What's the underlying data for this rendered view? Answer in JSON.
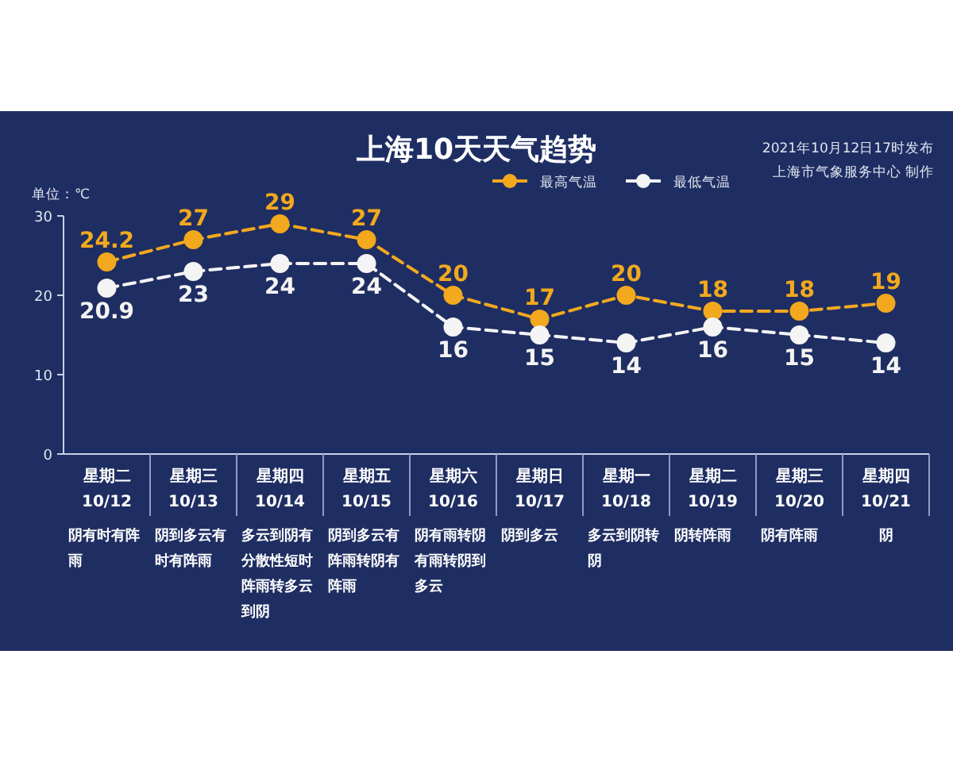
{
  "chart_data": {
    "type": "line",
    "title": "上海10天天气趋势",
    "ylabel": "单位：℃",
    "categories": [
      "星期二\n10/12",
      "星期三\n10/13",
      "星期四\n10/14",
      "星期五\n10/15",
      "星期六\n10/16",
      "星期日\n10/17",
      "星期一\n10/18",
      "星期二\n10/19",
      "星期三\n10/20",
      "星期四\n10/21"
    ],
    "series": [
      {
        "name": "最高气温",
        "color": "#f2a91e",
        "values": [
          24.2,
          27,
          29,
          27,
          20,
          17,
          20,
          18,
          18,
          19
        ]
      },
      {
        "name": "最低气温",
        "color": "#f4f4f4",
        "values": [
          20.9,
          23,
          24,
          24,
          16,
          15,
          14,
          16,
          15,
          14
        ]
      }
    ],
    "ylim": [
      0,
      30
    ],
    "yticks": [
      0,
      10,
      20,
      30
    ],
    "legend": "top",
    "marker": "circle",
    "line_style": "dashed",
    "data_labels": true,
    "annotations": [
      "2021年10月12日17时发布",
      "上海市气象服务中心 制作",
      "阴有时有阵雨",
      "阴到多云有时有阵雨",
      "多云到阴有分散性短时阵雨转多云到阴",
      "阴到多云有阵雨转阴有阵雨",
      "阴有雨转阴有雨转阴到多云",
      "阴到多云",
      "多云到阴转阴",
      "阴转阵雨",
      "阴有阵雨",
      "阴"
    ]
  }
}
